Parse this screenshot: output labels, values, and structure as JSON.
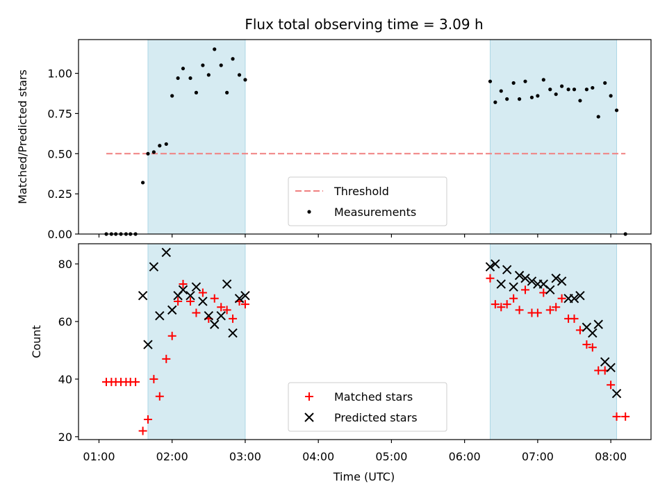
{
  "chart_data": {
    "title": "Flux total observing time = 3.09 h",
    "xlabel": "Time (UTC)",
    "x_ticks": [
      "01:00",
      "02:00",
      "03:00",
      "04:00",
      "05:00",
      "06:00",
      "07:00",
      "08:00"
    ],
    "xlim_hours": [
      0.72,
      8.55
    ],
    "shaded_intervals_hours": [
      [
        1.67,
        3.0
      ],
      [
        6.35,
        8.08
      ]
    ],
    "shade_color": "#add8e6",
    "grid": false,
    "panels": [
      {
        "type": "scatter",
        "ylabel": "Matched/Predicted stars",
        "ylim": [
          0,
          1.21
        ],
        "y_ticks": [
          0.0,
          0.25,
          0.5,
          0.75,
          1.0
        ],
        "y_tick_labels": [
          "0.00",
          "0.25",
          "0.50",
          "0.75",
          "1.00"
        ],
        "legend_position": "lower center",
        "threshold": {
          "name": "Threshold",
          "value": 0.5,
          "x_range_hours": [
            1.1,
            8.2
          ],
          "color": "#f08080",
          "style": "dashed"
        },
        "series": [
          {
            "name": "Measurements",
            "marker": "dot",
            "color": "#000000",
            "x_hours": [
              1.1,
              1.17,
              1.23,
              1.3,
              1.37,
              1.43,
              1.5,
              1.6,
              1.67,
              1.75,
              1.83,
              1.92,
              2.0,
              2.08,
              2.15,
              2.25,
              2.33,
              2.42,
              2.5,
              2.58,
              2.67,
              2.75,
              2.83,
              2.92,
              3.0,
              6.35,
              6.42,
              6.5,
              6.58,
              6.67,
              6.75,
              6.83,
              6.92,
              7.0,
              7.08,
              7.17,
              7.25,
              7.33,
              7.42,
              7.5,
              7.58,
              7.67,
              7.75,
              7.83,
              7.92,
              8.0,
              8.08,
              8.2
            ],
            "y": [
              0.0,
              0.0,
              0.0,
              0.0,
              0.0,
              0.0,
              0.0,
              0.32,
              0.5,
              0.51,
              0.55,
              0.56,
              0.86,
              0.97,
              1.03,
              0.97,
              0.88,
              1.05,
              0.99,
              1.15,
              1.05,
              0.88,
              1.09,
              0.99,
              0.96,
              0.95,
              0.82,
              0.89,
              0.84,
              0.94,
              0.84,
              0.95,
              0.85,
              0.86,
              0.96,
              0.9,
              0.87,
              0.92,
              0.9,
              0.9,
              0.83,
              0.9,
              0.91,
              0.73,
              0.94,
              0.86,
              0.77,
              0.0
            ]
          }
        ]
      },
      {
        "type": "scatter",
        "ylabel": "Count",
        "ylim": [
          19,
          87
        ],
        "y_ticks": [
          20,
          40,
          60,
          80
        ],
        "y_tick_labels": [
          "20",
          "40",
          "60",
          "80"
        ],
        "legend_position": "lower center",
        "series": [
          {
            "name": "Matched stars",
            "marker": "plus",
            "color": "#ff0000",
            "x_hours": [
              1.1,
              1.17,
              1.23,
              1.3,
              1.37,
              1.43,
              1.5,
              1.6,
              1.67,
              1.75,
              1.83,
              1.92,
              2.0,
              2.08,
              2.15,
              2.25,
              2.33,
              2.42,
              2.5,
              2.58,
              2.67,
              2.75,
              2.83,
              2.92,
              3.0,
              6.35,
              6.42,
              6.5,
              6.58,
              6.67,
              6.75,
              6.83,
              6.92,
              7.0,
              7.08,
              7.17,
              7.25,
              7.33,
              7.42,
              7.5,
              7.58,
              7.67,
              7.75,
              7.83,
              7.92,
              8.0,
              8.08,
              8.2
            ],
            "y": [
              39,
              39,
              39,
              39,
              39,
              39,
              39,
              22,
              26,
              40,
              34,
              47,
              55,
              67,
              73,
              67,
              63,
              70,
              61,
              68,
              65,
              64,
              61,
              67,
              66,
              75,
              66,
              65,
              66,
              68,
              64,
              71,
              63,
              63,
              70,
              64,
              65,
              68,
              61,
              61,
              57,
              52,
              51,
              43,
              43,
              38,
              27,
              27
            ]
          },
          {
            "name": "Predicted stars",
            "marker": "x",
            "color": "#000000",
            "x_hours": [
              1.6,
              1.67,
              1.75,
              1.83,
              1.92,
              2.0,
              2.08,
              2.15,
              2.25,
              2.33,
              2.42,
              2.5,
              2.58,
              2.67,
              2.75,
              2.83,
              2.92,
              3.0,
              6.35,
              6.42,
              6.5,
              6.58,
              6.67,
              6.75,
              6.83,
              6.92,
              7.0,
              7.08,
              7.17,
              7.25,
              7.33,
              7.42,
              7.5,
              7.58,
              7.67,
              7.75,
              7.83,
              7.92,
              8.0,
              8.08
            ],
            "y": [
              69,
              52,
              79,
              62,
              84,
              64,
              69,
              71,
              69,
              72,
              67,
              62,
              59,
              62,
              73,
              56,
              68,
              69,
              79,
              80,
              73,
              78,
              72,
              76,
              75,
              74,
              73,
              73,
              71,
              75,
              74,
              68,
              68,
              69,
              58,
              56,
              59,
              46,
              44,
              35
            ]
          }
        ]
      }
    ]
  }
}
